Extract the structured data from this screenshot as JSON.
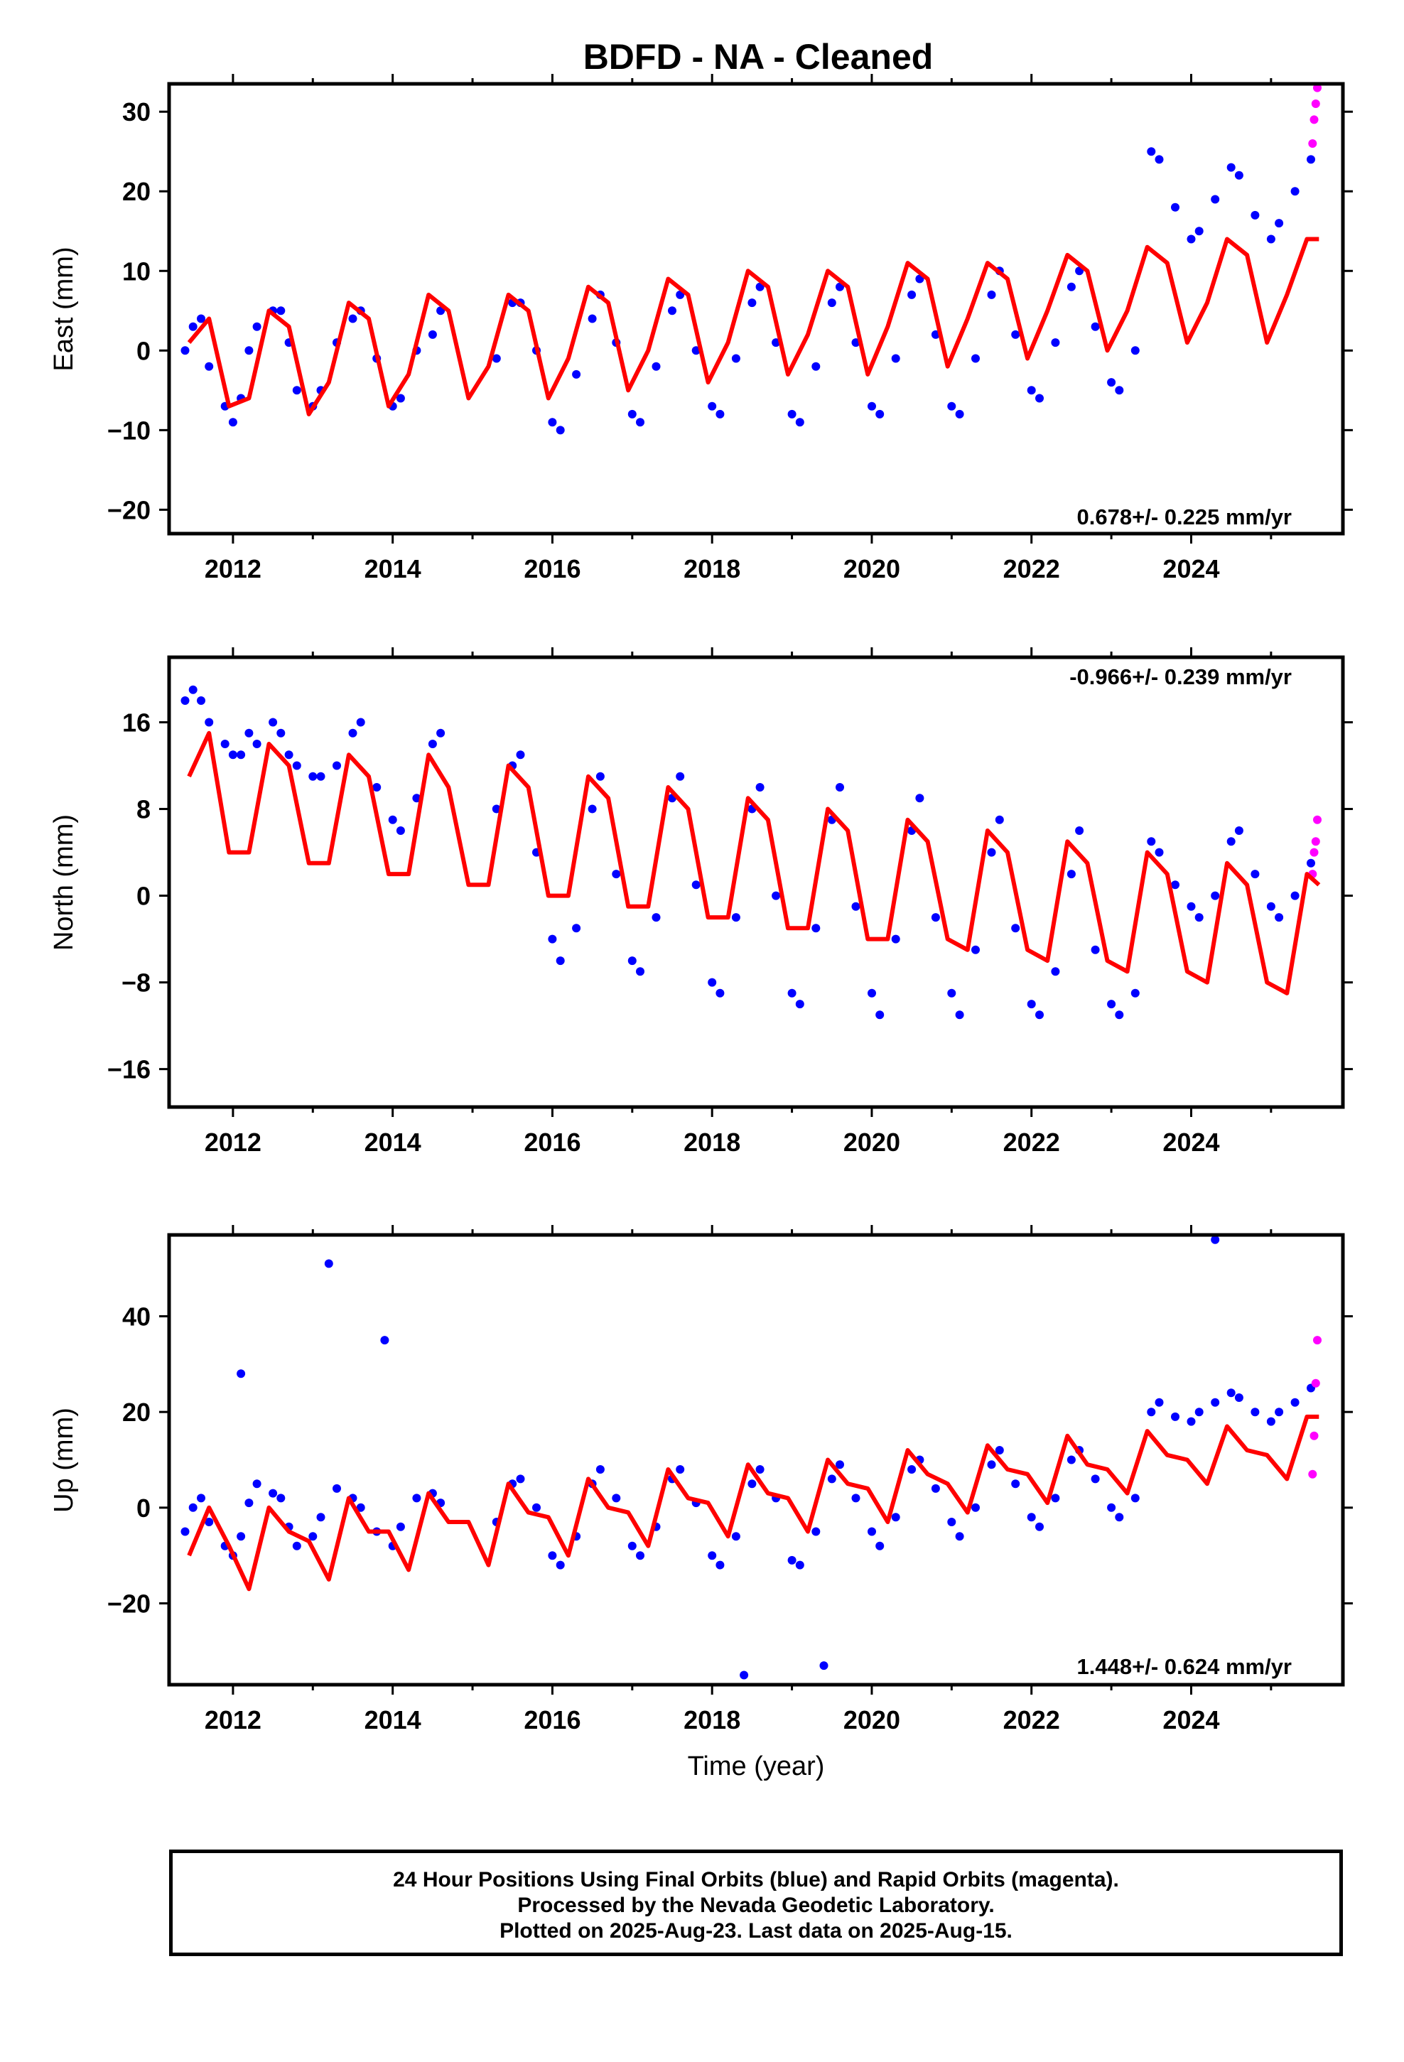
{
  "title": "BDFD  - NA - Cleaned",
  "xlabel": "Time (year)",
  "footer": {
    "line1": "24 Hour Positions Using Final Orbits (blue) and Rapid Orbits (magenta).",
    "line2": "Processed by the Nevada Geodetic Laboratory.",
    "line3": "Plotted on 2025-Aug-23. Last data on 2025-Aug-15."
  },
  "colors": {
    "final_orbits": "#0000ff",
    "rapid_orbits": "#ff00ff",
    "model_fit": "#ff0000"
  },
  "chart_data": [
    {
      "type": "scatter",
      "panel": "east",
      "ylabel": "East (mm)",
      "rate_label": "0.678+/- 0.225 mm/yr",
      "xlim": [
        2011.2,
        2025.9
      ],
      "ylim": [
        -23,
        33.5
      ],
      "xticks": [
        2012,
        2014,
        2016,
        2018,
        2020,
        2022,
        2024
      ],
      "yticks": [
        -20,
        -10,
        0,
        10,
        20,
        30
      ],
      "series": [
        {
          "name": "final orbits",
          "x": [
            2011.4,
            2011.5,
            2011.6,
            2011.7,
            2011.9,
            2012.0,
            2012.1,
            2012.2,
            2012.3,
            2012.5,
            2012.6,
            2012.7,
            2012.8,
            2013.0,
            2013.1,
            2013.3,
            2013.5,
            2013.6,
            2013.8,
            2014.0,
            2014.1,
            2014.3,
            2014.5,
            2014.6,
            2015.3,
            2015.5,
            2015.6,
            2015.8,
            2016.0,
            2016.1,
            2016.3,
            2016.5,
            2016.6,
            2016.8,
            2017.0,
            2017.1,
            2017.3,
            2017.5,
            2017.6,
            2017.8,
            2018.0,
            2018.1,
            2018.3,
            2018.5,
            2018.6,
            2018.8,
            2019.0,
            2019.1,
            2019.3,
            2019.5,
            2019.6,
            2019.8,
            2020.0,
            2020.1,
            2020.3,
            2020.5,
            2020.6,
            2020.8,
            2021.0,
            2021.1,
            2021.3,
            2021.5,
            2021.6,
            2021.8,
            2022.0,
            2022.1,
            2022.3,
            2022.5,
            2022.6,
            2022.8,
            2023.0,
            2023.1,
            2023.3,
            2023.5,
            2023.6,
            2023.8,
            2024.0,
            2024.1,
            2024.3,
            2024.5,
            2024.6,
            2024.8,
            2025.0,
            2025.1,
            2025.3,
            2025.5
          ],
          "y": [
            0,
            3,
            4,
            -2,
            -7,
            -9,
            -6,
            0,
            3,
            5,
            5,
            1,
            -5,
            -7,
            -5,
            1,
            4,
            5,
            -1,
            -7,
            -6,
            0,
            2,
            5,
            -1,
            6,
            6,
            0,
            -9,
            -10,
            -3,
            4,
            7,
            1,
            -8,
            -9,
            -2,
            5,
            7,
            0,
            -7,
            -8,
            -1,
            6,
            8,
            1,
            -8,
            -9,
            -2,
            6,
            8,
            1,
            -7,
            -8,
            -1,
            7,
            9,
            2,
            -7,
            -8,
            -1,
            7,
            10,
            2,
            -5,
            -6,
            1,
            8,
            10,
            3,
            -4,
            -5,
            0,
            25,
            24,
            18,
            14,
            15,
            19,
            23,
            22,
            17,
            14,
            16,
            20,
            24
          ]
        },
        {
          "name": "rapid orbits",
          "x": [
            2025.52,
            2025.54,
            2025.56,
            2025.58
          ],
          "y": [
            26,
            29,
            31,
            33
          ]
        },
        {
          "name": "model fit",
          "x": [
            2011.45,
            2011.7,
            2011.95,
            2012.2,
            2012.45,
            2012.7,
            2012.95,
            2013.2,
            2013.45,
            2013.7,
            2013.95,
            2014.2,
            2014.45,
            2014.7,
            2014.95,
            2015.2,
            2015.45,
            2015.7,
            2015.95,
            2016.2,
            2016.45,
            2016.7,
            2016.95,
            2017.2,
            2017.45,
            2017.7,
            2017.95,
            2018.2,
            2018.45,
            2018.7,
            2018.95,
            2019.2,
            2019.45,
            2019.7,
            2019.95,
            2020.2,
            2020.45,
            2020.7,
            2020.95,
            2021.2,
            2021.45,
            2021.7,
            2021.95,
            2022.2,
            2022.45,
            2022.7,
            2022.95,
            2023.2,
            2023.45,
            2023.7,
            2023.95,
            2024.2,
            2024.45,
            2024.7,
            2024.95,
            2025.2,
            2025.45,
            2025.6
          ],
          "y": [
            1,
            4,
            -7,
            -6,
            5,
            3,
            -8,
            -4,
            6,
            4,
            -7,
            -3,
            7,
            5,
            -6,
            -2,
            7,
            5,
            -6,
            -1,
            8,
            6,
            -5,
            0,
            9,
            7,
            -4,
            1,
            10,
            8,
            -3,
            2,
            10,
            8,
            -3,
            3,
            11,
            9,
            -2,
            4,
            11,
            9,
            -1,
            5,
            12,
            10,
            0,
            5,
            13,
            11,
            1,
            6,
            14,
            12,
            1,
            7,
            14,
            14
          ]
        }
      ]
    },
    {
      "type": "scatter",
      "panel": "north",
      "ylabel": "North (mm)",
      "rate_label": "-0.966+/- 0.239 mm/yr",
      "xlim": [
        2011.2,
        2025.9
      ],
      "ylim": [
        -19.5,
        22
      ],
      "xticks": [
        2012,
        2014,
        2016,
        2018,
        2020,
        2022,
        2024
      ],
      "yticks": [
        -16,
        -8,
        0,
        8,
        16
      ],
      "series": [
        {
          "name": "final orbits",
          "x": [
            2011.4,
            2011.5,
            2011.6,
            2011.7,
            2011.9,
            2012.0,
            2012.1,
            2012.2,
            2012.3,
            2012.5,
            2012.6,
            2012.7,
            2012.8,
            2013.0,
            2013.1,
            2013.3,
            2013.5,
            2013.6,
            2013.8,
            2014.0,
            2014.1,
            2014.3,
            2014.5,
            2014.6,
            2015.3,
            2015.5,
            2015.6,
            2015.8,
            2016.0,
            2016.1,
            2016.3,
            2016.5,
            2016.6,
            2016.8,
            2017.0,
            2017.1,
            2017.3,
            2017.5,
            2017.6,
            2017.8,
            2018.0,
            2018.1,
            2018.3,
            2018.5,
            2018.6,
            2018.8,
            2019.0,
            2019.1,
            2019.3,
            2019.5,
            2019.6,
            2019.8,
            2020.0,
            2020.1,
            2020.3,
            2020.5,
            2020.6,
            2020.8,
            2021.0,
            2021.1,
            2021.3,
            2021.5,
            2021.6,
            2021.8,
            2022.0,
            2022.1,
            2022.3,
            2022.5,
            2022.6,
            2022.8,
            2023.0,
            2023.1,
            2023.3,
            2023.5,
            2023.6,
            2023.8,
            2024.0,
            2024.1,
            2024.3,
            2024.5,
            2024.6,
            2024.8,
            2025.0,
            2025.1,
            2025.3,
            2025.5
          ],
          "y": [
            18,
            19,
            18,
            16,
            14,
            13,
            13,
            15,
            14,
            16,
            15,
            13,
            12,
            11,
            11,
            12,
            15,
            16,
            10,
            7,
            6,
            9,
            14,
            15,
            8,
            12,
            13,
            4,
            -4,
            -6,
            -3,
            8,
            11,
            2,
            -6,
            -7,
            -2,
            9,
            11,
            1,
            -8,
            -9,
            -2,
            8,
            10,
            0,
            -9,
            -10,
            -3,
            7,
            10,
            -1,
            -9,
            -11,
            -4,
            6,
            9,
            -2,
            -9,
            -11,
            -5,
            4,
            7,
            -3,
            -10,
            -11,
            -7,
            2,
            6,
            -5,
            -10,
            -11,
            -9,
            5,
            4,
            1,
            -1,
            -2,
            0,
            5,
            6,
            2,
            -1,
            -2,
            0,
            3
          ]
        },
        {
          "name": "rapid orbits",
          "x": [
            2025.52,
            2025.54,
            2025.56,
            2025.58
          ],
          "y": [
            2,
            4,
            5,
            7
          ]
        },
        {
          "name": "model fit",
          "x": [
            2011.45,
            2011.7,
            2011.95,
            2012.2,
            2012.45,
            2012.7,
            2012.95,
            2013.2,
            2013.45,
            2013.7,
            2013.95,
            2014.2,
            2014.45,
            2014.7,
            2014.95,
            2015.2,
            2015.45,
            2015.7,
            2015.95,
            2016.2,
            2016.45,
            2016.7,
            2016.95,
            2017.2,
            2017.45,
            2017.7,
            2017.95,
            2018.2,
            2018.45,
            2018.7,
            2018.95,
            2019.2,
            2019.45,
            2019.7,
            2019.95,
            2020.2,
            2020.45,
            2020.7,
            2020.95,
            2021.2,
            2021.45,
            2021.7,
            2021.95,
            2022.2,
            2022.45,
            2022.7,
            2022.95,
            2023.2,
            2023.45,
            2023.7,
            2023.95,
            2024.2,
            2024.45,
            2024.7,
            2024.95,
            2025.2,
            2025.45,
            2025.6
          ],
          "y": [
            11,
            15,
            4,
            4,
            14,
            12,
            3,
            3,
            13,
            11,
            2,
            2,
            13,
            10,
            1,
            1,
            12,
            10,
            0,
            0,
            11,
            9,
            -1,
            -1,
            10,
            8,
            -2,
            -2,
            9,
            7,
            -3,
            -3,
            8,
            6,
            -4,
            -4,
            7,
            5,
            -4,
            -5,
            6,
            4,
            -5,
            -6,
            5,
            3,
            -6,
            -7,
            4,
            2,
            -7,
            -8,
            3,
            1,
            -8,
            -9,
            2,
            1
          ]
        }
      ]
    },
    {
      "type": "scatter",
      "panel": "up",
      "ylabel": "Up (mm)",
      "rate_label": "1.448+/- 0.624 mm/yr",
      "xlim": [
        2011.2,
        2025.9
      ],
      "ylim": [
        -37,
        57
      ],
      "xticks": [
        2012,
        2014,
        2016,
        2018,
        2020,
        2022,
        2024
      ],
      "yticks": [
        -20,
        0,
        20,
        40
      ],
      "series": [
        {
          "name": "final orbits",
          "x": [
            2011.4,
            2011.5,
            2011.6,
            2011.7,
            2011.9,
            2012.0,
            2012.1,
            2012.2,
            2012.3,
            2012.5,
            2012.6,
            2012.7,
            2012.8,
            2013.0,
            2013.1,
            2013.3,
            2013.5,
            2013.6,
            2013.8,
            2014.0,
            2014.1,
            2014.3,
            2014.5,
            2014.6,
            2015.3,
            2015.5,
            2015.6,
            2015.8,
            2016.0,
            2016.1,
            2016.3,
            2016.5,
            2016.6,
            2016.8,
            2017.0,
            2017.1,
            2017.3,
            2017.5,
            2017.6,
            2017.8,
            2018.0,
            2018.1,
            2018.3,
            2018.5,
            2018.6,
            2018.8,
            2019.0,
            2019.1,
            2019.3,
            2019.5,
            2019.6,
            2019.8,
            2020.0,
            2020.1,
            2020.3,
            2020.5,
            2020.6,
            2020.8,
            2021.0,
            2021.1,
            2021.3,
            2021.5,
            2021.6,
            2021.8,
            2022.0,
            2022.1,
            2022.3,
            2022.5,
            2022.6,
            2022.8,
            2023.0,
            2023.1,
            2023.3,
            2023.5,
            2023.6,
            2023.8,
            2024.0,
            2024.1,
            2024.3,
            2024.5,
            2024.6,
            2024.8,
            2025.0,
            2025.1,
            2025.3,
            2025.5,
            2012.1,
            2013.2,
            2013.9,
            2018.4,
            2019.4,
            2024.3
          ],
          "y": [
            -5,
            0,
            2,
            -3,
            -8,
            -10,
            -6,
            1,
            5,
            3,
            2,
            -4,
            -8,
            -6,
            -2,
            4,
            2,
            0,
            -5,
            -8,
            -4,
            2,
            3,
            1,
            -3,
            5,
            6,
            0,
            -10,
            -12,
            -6,
            5,
            8,
            2,
            -8,
            -10,
            -4,
            6,
            8,
            1,
            -10,
            -12,
            -6,
            5,
            8,
            2,
            -11,
            -12,
            -5,
            6,
            9,
            2,
            -5,
            -8,
            -2,
            8,
            10,
            4,
            -3,
            -6,
            0,
            9,
            12,
            5,
            -2,
            -4,
            2,
            10,
            12,
            6,
            0,
            -2,
            2,
            20,
            22,
            19,
            18,
            20,
            22,
            24,
            23,
            20,
            18,
            20,
            22,
            25,
            28,
            51,
            35,
            -35,
            -33,
            56
          ]
        },
        {
          "name": "rapid orbits",
          "x": [
            2025.52,
            2025.54,
            2025.56,
            2025.58
          ],
          "y": [
            7,
            15,
            26,
            35
          ]
        },
        {
          "name": "model fit",
          "x": [
            2011.45,
            2011.7,
            2011.95,
            2012.2,
            2012.45,
            2012.7,
            2012.95,
            2013.2,
            2013.45,
            2013.7,
            2013.95,
            2014.2,
            2014.45,
            2014.7,
            2014.95,
            2015.2,
            2015.45,
            2015.7,
            2015.95,
            2016.2,
            2016.45,
            2016.7,
            2016.95,
            2017.2,
            2017.45,
            2017.7,
            2017.95,
            2018.2,
            2018.45,
            2018.7,
            2018.95,
            2019.2,
            2019.45,
            2019.7,
            2019.95,
            2020.2,
            2020.45,
            2020.7,
            2020.95,
            2021.2,
            2021.45,
            2021.7,
            2021.95,
            2022.2,
            2022.45,
            2022.7,
            2022.95,
            2023.2,
            2023.45,
            2023.7,
            2023.95,
            2024.2,
            2024.45,
            2024.7,
            2024.95,
            2025.2,
            2025.45,
            2025.6
          ],
          "y": [
            -10,
            0,
            -8,
            -17,
            0,
            -5,
            -7,
            -15,
            2,
            -5,
            -5,
            -13,
            3,
            -3,
            -3,
            -12,
            5,
            -1,
            -2,
            -10,
            6,
            0,
            -1,
            -8,
            8,
            2,
            1,
            -6,
            9,
            3,
            2,
            -5,
            10,
            5,
            4,
            -3,
            12,
            7,
            5,
            -1,
            13,
            8,
            7,
            1,
            15,
            9,
            8,
            3,
            16,
            11,
            10,
            5,
            17,
            12,
            11,
            6,
            19,
            19
          ]
        }
      ]
    }
  ]
}
